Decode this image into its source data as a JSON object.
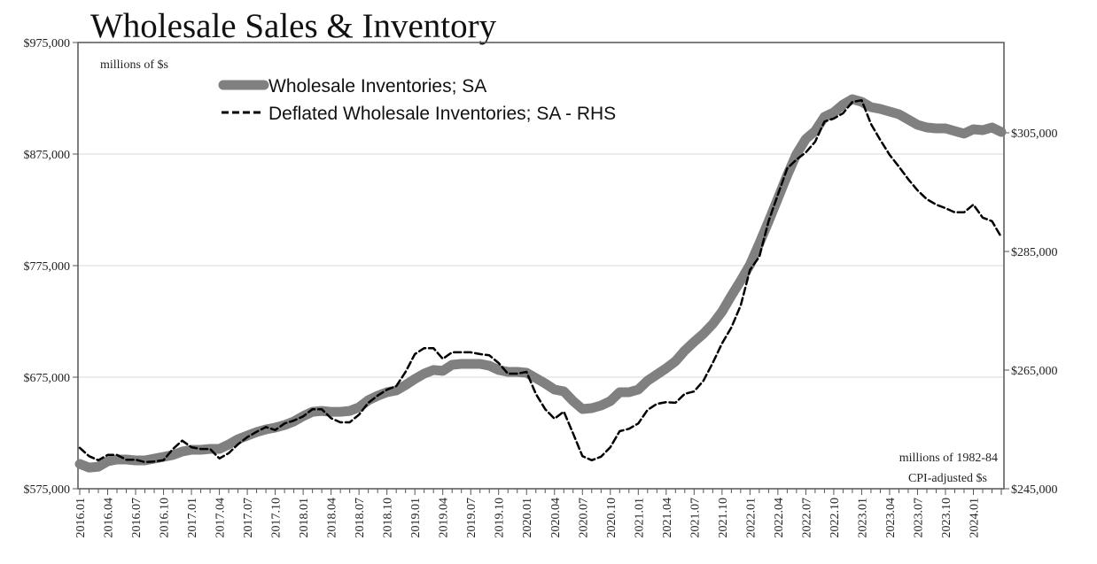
{
  "chart_data": {
    "type": "line",
    "title": "Wholesale Sales & Inventory",
    "left_axis_note": "millions of $s",
    "right_axis_note": [
      "millions of 1982-84",
      "CPI-adjusted $s"
    ],
    "left_ylim": [
      575000,
      975000
    ],
    "left_ticks": [
      575000,
      675000,
      775000,
      875000,
      975000
    ],
    "left_tick_labels": [
      "$575,000",
      "$675,000",
      "$775,000",
      "$875,000",
      "$975,000"
    ],
    "right_ylim": [
      245000,
      320224
    ],
    "right_ticks": [
      245000,
      265000,
      285000,
      305000
    ],
    "right_tick_labels": [
      "$245,000",
      "$265,000",
      "$285,000",
      "$305,000"
    ],
    "grid": true,
    "legend_placement": "top-left",
    "x_start": "2016.01",
    "x_tick_labels": [
      "2016.01",
      "2016.04",
      "2016.07",
      "2016.10",
      "2017.01",
      "2017.04",
      "2017.07",
      "2017.10",
      "2018.01",
      "2018.04",
      "2018.07",
      "2018.10",
      "2019.01",
      "2019.04",
      "2019.07",
      "2019.10",
      "2020.01",
      "2020.04",
      "2020.07",
      "2020.10",
      "2021.01",
      "2021.04",
      "2021.07",
      "2021.10",
      "2022.01",
      "2022.04",
      "2022.07",
      "2022.10",
      "2023.01",
      "2023.04",
      "2023.07",
      "2023.10",
      "2024.01"
    ],
    "series": [
      {
        "name": "Wholesale Inventories; SA",
        "axis": "left",
        "color": "#808080",
        "style": "thick-solid",
        "values": [
          597200,
          594000,
          594800,
          599600,
          601200,
          601200,
          600400,
          600400,
          602000,
          603600,
          605200,
          608300,
          609900,
          609900,
          610700,
          610700,
          614700,
          619400,
          622600,
          625800,
          628200,
          629800,
          632100,
          635300,
          640100,
          644000,
          644800,
          644000,
          644000,
          644800,
          648000,
          654400,
          658300,
          661500,
          663100,
          667900,
          673400,
          678200,
          681400,
          680600,
          686100,
          686900,
          686900,
          686900,
          685300,
          681400,
          679800,
          679800,
          679000,
          674200,
          669400,
          663900,
          662300,
          653600,
          646400,
          647200,
          649600,
          653600,
          661500,
          661500,
          663900,
          671800,
          677400,
          682900,
          689300,
          698800,
          706700,
          713900,
          722600,
          733700,
          748000,
          761500,
          775800,
          794800,
          814700,
          835300,
          856000,
          875000,
          888500,
          895600,
          908300,
          912300,
          919400,
          924200,
          921800,
          917100,
          915500,
          913100,
          910700,
          906000,
          901200,
          898800,
          898000,
          898000,
          895600,
          893300,
          897200,
          896400,
          898800,
          894800
        ]
      },
      {
        "name": "Deflated Wholesale Inventories; SA - RHS",
        "axis": "right",
        "color": "#000000",
        "style": "dashed",
        "values": [
          251900,
          250500,
          249800,
          250700,
          250700,
          249900,
          249900,
          249500,
          249600,
          249800,
          251700,
          253100,
          252000,
          251700,
          251700,
          250100,
          251000,
          252500,
          253700,
          254600,
          255400,
          254900,
          256000,
          256500,
          257200,
          258400,
          258400,
          256900,
          256200,
          256200,
          257500,
          259500,
          260700,
          261700,
          262300,
          264700,
          267700,
          268700,
          268700,
          266900,
          268000,
          268000,
          268000,
          267700,
          267500,
          266200,
          264400,
          264400,
          264700,
          261000,
          258400,
          256800,
          258000,
          254300,
          250500,
          249800,
          250400,
          252000,
          254700,
          255100,
          256000,
          258300,
          259300,
          259600,
          259500,
          261000,
          261400,
          263200,
          266200,
          269500,
          272200,
          275900,
          281900,
          284100,
          290100,
          294600,
          299000,
          300500,
          301700,
          303500,
          306900,
          307400,
          308300,
          310200,
          310500,
          306500,
          303800,
          301300,
          299300,
          297200,
          295300,
          293800,
          292900,
          292300,
          291600,
          291600,
          292900,
          290700,
          290100,
          287400
        ]
      }
    ]
  }
}
